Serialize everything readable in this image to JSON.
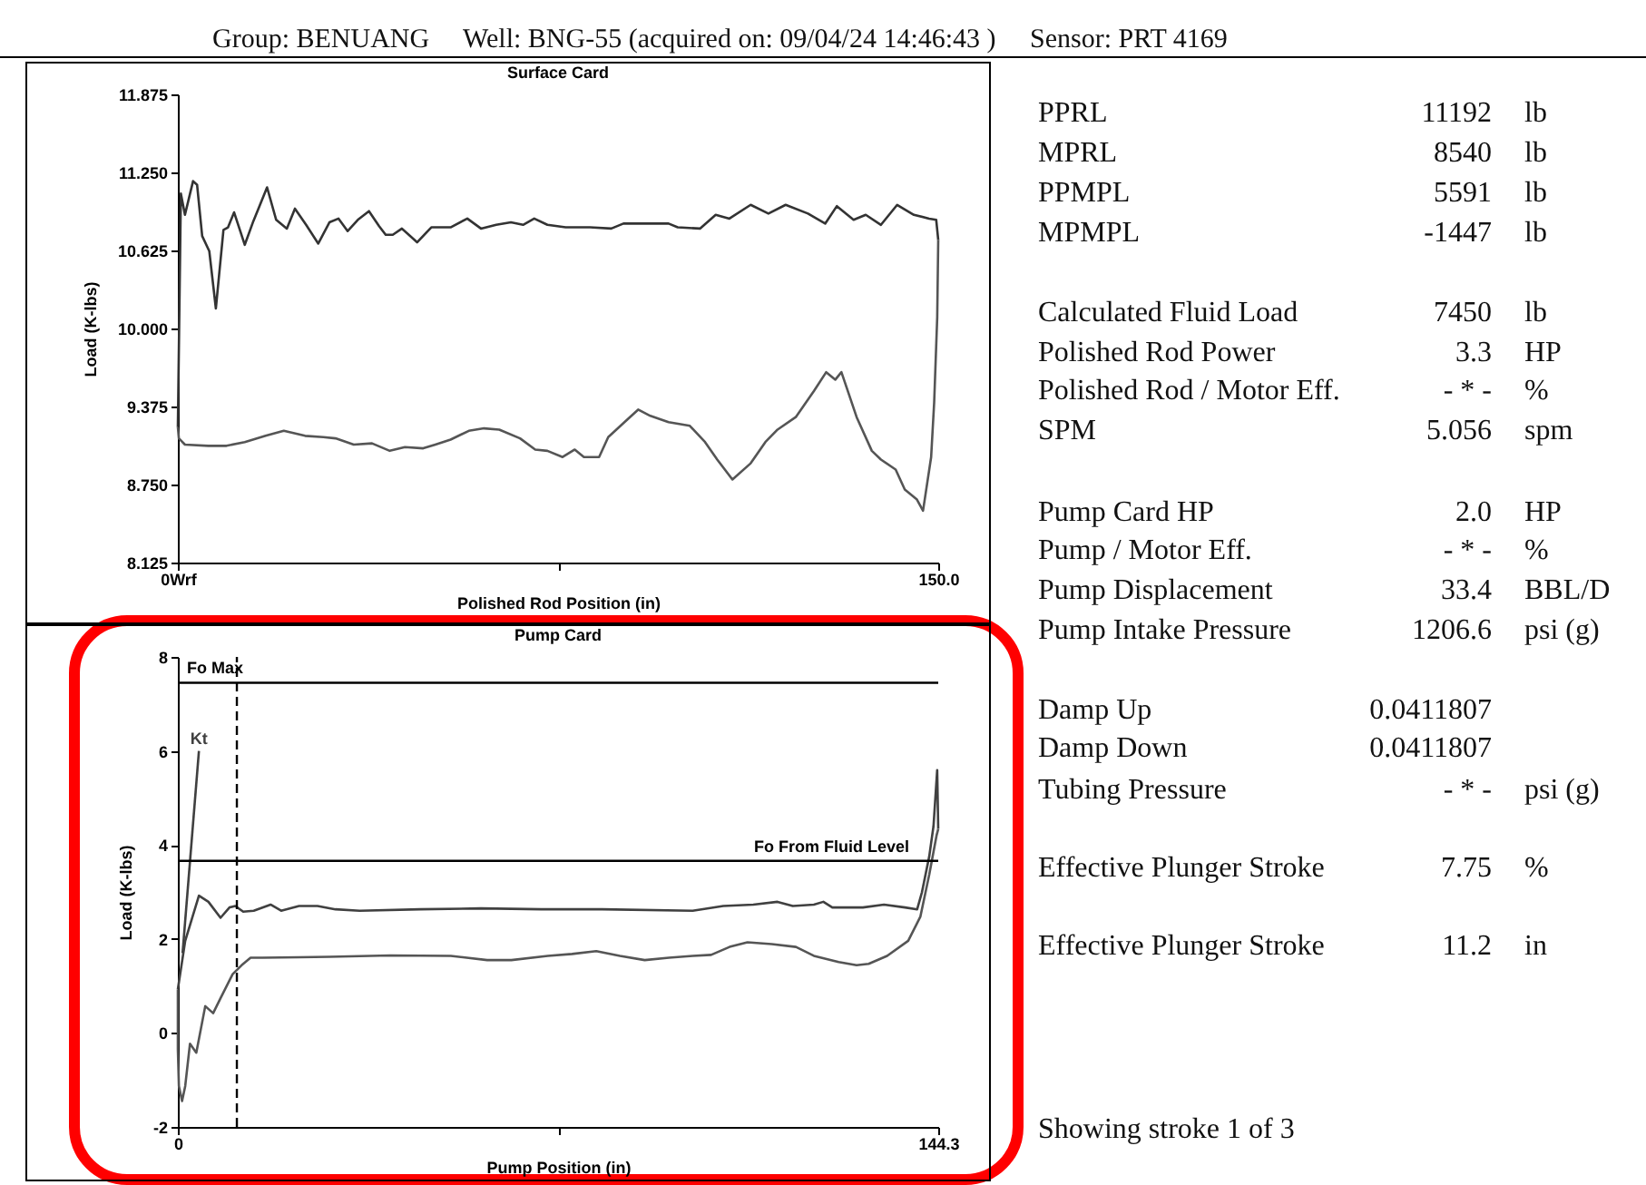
{
  "chart_data": [
    {
      "type": "line",
      "title": "Surface Card",
      "xlabel": "Polished Rod Position (in)",
      "ylabel": "Load (K-lbs)",
      "xlim": [
        0,
        150
      ],
      "ylim": [
        8.125,
        11.875
      ],
      "xticks": [
        {
          "value": 0,
          "label": "0Wrf"
        },
        {
          "value": 75,
          "label": null
        },
        {
          "value": 150,
          "label": "150.0"
        }
      ],
      "yticks": [
        {
          "value": 8.125,
          "label": "8.125"
        },
        {
          "value": 8.75,
          "label": "8.750"
        },
        {
          "value": 9.375,
          "label": "9.375"
        },
        {
          "value": 10,
          "label": "10.000"
        },
        {
          "value": 10.625,
          "label": "10.625"
        },
        {
          "value": 11.25,
          "label": "11.250"
        },
        {
          "value": 11.875,
          "label": "11.875"
        }
      ],
      "series": [
        {
          "color": "#333333",
          "x": [
            0,
            0.6,
            1.4,
            3.0,
            3.8,
            4.8,
            6.2,
            7.5,
            9.0,
            9.9,
            11.1,
            13.2,
            14.9,
            16.1,
            17.6,
            19.4,
            21.5,
            23.1,
            25.3,
            27.7,
            29.9,
            31.7,
            33.5,
            35.5,
            37.7,
            39.7,
            41.0,
            42.4,
            44.2,
            47.2,
            50.0,
            53.8,
            57.1,
            59.8,
            62.8,
            65.7,
            68.1,
            70.3,
            72.9,
            76.5,
            81.3,
            85.5,
            87.9,
            92.0,
            96.8,
            98.6,
            103.0,
            106.1,
            108.8,
            113.0,
            116.5,
            119.9,
            124.3,
            127.7,
            130.0,
            133.3,
            135.7,
            138.7,
            141.9,
            145.2,
            148.2,
            149.6,
            150.0
          ],
          "values": [
            9.21,
            11.08,
            10.91,
            11.18,
            11.15,
            10.74,
            10.62,
            10.16,
            10.79,
            10.81,
            10.93,
            10.67,
            10.86,
            10.98,
            11.13,
            10.87,
            10.8,
            10.96,
            10.83,
            10.68,
            10.85,
            10.88,
            10.78,
            10.87,
            10.94,
            10.82,
            10.75,
            10.75,
            10.8,
            10.69,
            10.81,
            10.81,
            10.88,
            10.8,
            10.83,
            10.85,
            10.83,
            10.88,
            10.83,
            10.81,
            10.81,
            10.8,
            10.84,
            10.84,
            10.84,
            10.81,
            10.8,
            10.91,
            10.88,
            10.99,
            10.92,
            10.99,
            10.92,
            10.84,
            10.98,
            10.87,
            10.91,
            10.83,
            10.99,
            10.91,
            10.88,
            10.87,
            10.71
          ]
        },
        {
          "color": "#555555",
          "x": [
            150.0,
            149.8,
            149.2,
            148.6,
            147.0,
            145.8,
            143.4,
            141.6,
            138.7,
            136.9,
            133.9,
            130.9,
            129.7,
            127.9,
            125.5,
            121.9,
            118.3,
            115.9,
            113.0,
            109.4,
            106.4,
            104.0,
            101.0,
            96.8,
            93.2,
            90.8,
            88.4,
            84.9,
            83.1,
            80.1,
            78.3,
            75.9,
            72.9,
            70.5,
            67.5,
            63.4,
            60.4,
            57.4,
            53.8,
            50.8,
            48.4,
            44.8,
            41.8,
            38.3,
            34.7,
            31.1,
            28.7,
            25.1,
            20.9,
            17.3,
            13.2,
            9.6,
            6.0,
            1.4,
            0.2,
            0
          ],
          "values": [
            10.71,
            10.09,
            9.41,
            8.97,
            8.54,
            8.63,
            8.71,
            8.87,
            8.95,
            9.02,
            9.29,
            9.65,
            9.59,
            9.65,
            9.5,
            9.29,
            9.19,
            9.09,
            8.92,
            8.79,
            8.95,
            9.09,
            9.22,
            9.25,
            9.3,
            9.35,
            9.26,
            9.13,
            8.97,
            8.97,
            9.03,
            8.97,
            9.02,
            9.03,
            9.12,
            9.19,
            9.2,
            9.18,
            9.11,
            9.07,
            9.04,
            9.05,
            9.02,
            9.08,
            9.07,
            9.12,
            9.13,
            9.14,
            9.18,
            9.14,
            9.09,
            9.06,
            9.06,
            9.07,
            9.12,
            9.21
          ]
        }
      ]
    },
    {
      "type": "line",
      "title": "Pump Card",
      "xlabel": "Pump Position (in)",
      "ylabel": "Load (K-lbs)",
      "xlim": [
        0,
        144.3
      ],
      "ylim": [
        -2,
        8
      ],
      "xticks": [
        0,
        {
          "value": 72.15,
          "label": null
        },
        144.3
      ],
      "yticks": [
        -2,
        0,
        2,
        4,
        6,
        8
      ],
      "series": [
        {
          "color": "#404040",
          "x": [
            0,
            1.4,
            4.0,
            5.8,
            8.1,
            9.8,
            10.9,
            12.4,
            14.4,
            17.6,
            19.6,
            23.0,
            26.5,
            29.9,
            34.5,
            46.0,
            57.5,
            69.0,
            80.5,
            97.7,
            103.5,
            109.2,
            113.8,
            116.7,
            120.7,
            122.5,
            124.2,
            130.0,
            134.0,
            138.0,
            140.3,
            141.2,
            142.6,
            143.4,
            144.1,
            144.3
          ],
          "values": [
            0.93,
            1.96,
            2.92,
            2.79,
            2.45,
            2.67,
            2.7,
            2.58,
            2.6,
            2.73,
            2.6,
            2.7,
            2.7,
            2.63,
            2.6,
            2.63,
            2.65,
            2.63,
            2.63,
            2.6,
            2.7,
            2.73,
            2.79,
            2.7,
            2.73,
            2.79,
            2.67,
            2.67,
            2.73,
            2.67,
            2.63,
            2.99,
            3.76,
            4.4,
            5.59,
            4.34
          ]
        },
        {
          "color": "#555555",
          "x": [
            144.3,
            144.0,
            142.6,
            140.9,
            138.6,
            134.6,
            131.1,
            128.8,
            125.4,
            120.7,
            117.3,
            112.7,
            108.1,
            104.7,
            101.2,
            97.7,
            93.2,
            88.6,
            83.9,
            79.4,
            74.8,
            70.2,
            63.3,
            58.7,
            51.8,
            40.3,
            28.8,
            23.0,
            16.1,
            13.8,
            12.1,
            10.4,
            8.1,
            6.7,
            5.2,
            3.5,
            2.3,
            1.4,
            0.8,
            0.2,
            0,
            0
          ],
          "values": [
            4.34,
            4.21,
            3.37,
            2.47,
            1.96,
            1.64,
            1.47,
            1.44,
            1.51,
            1.64,
            1.83,
            1.89,
            1.93,
            1.83,
            1.66,
            1.64,
            1.6,
            1.55,
            1.64,
            1.74,
            1.68,
            1.64,
            1.55,
            1.55,
            1.64,
            1.65,
            1.62,
            1.61,
            1.6,
            1.6,
            1.44,
            1.25,
            0.74,
            0.42,
            0.57,
            -0.42,
            -0.23,
            -1.13,
            -1.45,
            -1.13,
            -0.35,
            0.93
          ]
        },
        {
          "name": "Kt",
          "color": "#404040",
          "x": [
            0.9,
            4.0
          ],
          "values": [
            1.7,
            6.0
          ]
        }
      ],
      "ref_lines": [
        {
          "axis": "y",
          "value": 7.45,
          "label": "Fo Max",
          "color": "#000000"
        },
        {
          "axis": "y",
          "value": 3.66,
          "label": "Fo From Fluid Level",
          "color": "#000000"
        },
        {
          "axis": "x",
          "value": 11.2,
          "color": "#000000",
          "line_style": "dashed"
        }
      ]
    },
    {
      "type": "other",
      "title": "Group: BENUANG     Well: BNG-55 (acquired on: 09/04/24 14:46:43 )     Sensor: PRT 4169",
      "annotations": [
        "PPRL",
        "11192",
        "lb",
        "MPRL",
        "8540",
        "lb",
        "PPMPL",
        "5591",
        "lb",
        "MPMPL",
        "-1447",
        "lb",
        "Calculated Fluid Load",
        "7450",
        "lb",
        "Polished Rod Power",
        "3.3",
        "HP",
        "Polished Rod / Motor Eff.",
        "- * -",
        "%",
        "SPM",
        "5.056",
        "spm",
        "Pump Card HP",
        "2.0",
        "HP",
        "Pump / Motor Eff.",
        "- * -",
        "%",
        "Pump Displacement",
        "33.4",
        "BBL/D",
        "Pump Intake Pressure",
        "1206.6",
        "psi (g)",
        "Damp Up",
        "0.0411807",
        "Damp Down",
        "0.0411807",
        "Tubing Pressure",
        "- * -",
        "psi (g)",
        "Effective Plunger Stroke",
        "7.75",
        "%",
        "Effective Plunger Stroke",
        "11.2",
        "in",
        "Showing stroke 1 of 3"
      ]
    }
  ]
}
